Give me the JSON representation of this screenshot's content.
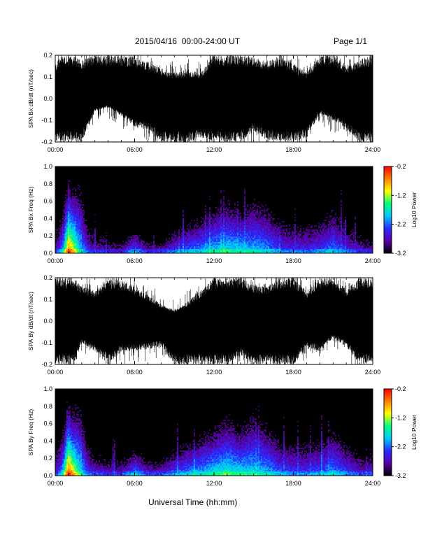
{
  "header": {
    "title": "2015/04/16  00:00-24:00 UT",
    "page": "Page 1/1"
  },
  "x_axis_title": "Universal Time (hh:mm)",
  "colors": {
    "background": "#ffffff",
    "waveform": "#000000",
    "spectrogram_background": "#000000",
    "colorbar": [
      "#000000",
      "#5a00a8",
      "#2a2aff",
      "#00c8ff",
      "#00ff80",
      "#ffff00",
      "#ff8000",
      "#ff0000"
    ]
  },
  "chart_data": [
    {
      "type": "line",
      "panel": "SPA Bx dB/dt",
      "ylabel": "SPA Bx dB/dt (nT/sec)",
      "ylim": [
        -0.2,
        0.2
      ],
      "yticks": [
        "-0.2",
        "-0.1",
        "0.0",
        "0.1",
        "0.2"
      ],
      "xlim": [
        "00:00",
        "24:00"
      ],
      "xticks": [
        "00:00",
        "06:00",
        "12:00",
        "18:00",
        "24:00"
      ],
      "amplitude_envelope": {
        "hours": [
          0,
          0.5,
          1,
          1.5,
          2,
          3,
          4,
          5,
          6,
          7,
          8,
          9,
          10,
          11,
          12,
          13,
          14,
          15,
          16,
          17,
          18,
          19,
          20,
          21,
          22,
          23,
          24
        ],
        "upper": [
          0.16,
          0.2,
          0.2,
          0.2,
          0.18,
          0.2,
          0.2,
          0.2,
          0.19,
          0.17,
          0.14,
          0.12,
          0.13,
          0.12,
          0.2,
          0.2,
          0.2,
          0.19,
          0.17,
          0.2,
          0.16,
          0.12,
          0.2,
          0.2,
          0.15,
          0.18,
          0.2
        ],
        "lower": [
          -0.2,
          -0.2,
          -0.19,
          -0.2,
          -0.2,
          -0.06,
          -0.04,
          -0.08,
          -0.13,
          -0.14,
          -0.2,
          -0.2,
          -0.2,
          -0.18,
          -0.2,
          -0.2,
          -0.2,
          -0.15,
          -0.19,
          -0.2,
          -0.2,
          -0.18,
          -0.07,
          -0.1,
          -0.14,
          -0.2,
          -0.2
        ]
      }
    },
    {
      "type": "heatmap",
      "panel": "SPA Bx Freq",
      "ylabel": "SPA Bx Freq (Hz)",
      "ylim": [
        0.0,
        1.0
      ],
      "yticks": [
        "0.0",
        "0.2",
        "0.4",
        "0.6",
        "0.8",
        "1.0"
      ],
      "xlim": [
        "00:00",
        "24:00"
      ],
      "xticks": [
        "00:00",
        "06:00",
        "12:00",
        "18:00",
        "24:00"
      ],
      "colorbar_label": "Log10 Power",
      "colorbar_range": [
        -3.2,
        -0.2
      ],
      "colorbar_ticks": [
        "-0.2",
        "-1.2",
        "-2.2",
        "-3.2"
      ],
      "activity_profile": {
        "hours": [
          0,
          0.5,
          1,
          1.3,
          1.8,
          2.5,
          3,
          4,
          5,
          6,
          7,
          8,
          9,
          10,
          11,
          12,
          13,
          14,
          15,
          16,
          17,
          18,
          19,
          20,
          21,
          22,
          23,
          24
        ],
        "max_freq_hz": [
          0.35,
          0.55,
          1.0,
          0.9,
          1.0,
          0.45,
          0.3,
          0.25,
          0.2,
          0.35,
          0.2,
          0.2,
          0.35,
          0.45,
          0.55,
          0.65,
          0.75,
          0.65,
          0.8,
          0.7,
          0.5,
          0.45,
          0.45,
          0.5,
          0.65,
          0.45,
          0.3,
          0.25
        ],
        "log_power_peak": [
          -2.6,
          -2.0,
          -0.4,
          -0.8,
          -1.6,
          -2.4,
          -2.5,
          -2.6,
          -2.6,
          -2.0,
          -2.5,
          -2.5,
          -2.2,
          -2.0,
          -1.9,
          -1.7,
          -1.6,
          -1.7,
          -1.8,
          -1.9,
          -2.2,
          -2.3,
          -2.3,
          -2.2,
          -2.0,
          -2.3,
          -2.5,
          -2.6
        ]
      }
    },
    {
      "type": "line",
      "panel": "SPA By dB/dt",
      "ylabel": "SPA By dB/dt (nT/sec)",
      "ylim": [
        -0.2,
        0.2
      ],
      "yticks": [
        "-0.2",
        "-0.1",
        "0.0",
        "0.1",
        "0.2"
      ],
      "xlim": [
        "00:00",
        "24:00"
      ],
      "xticks": [
        "00:00",
        "06:00",
        "12:00",
        "18:00",
        "24:00"
      ],
      "amplitude_envelope": {
        "hours": [
          0,
          0.5,
          1,
          1.5,
          2,
          3,
          4,
          5,
          6,
          7,
          8,
          9,
          10,
          11,
          12,
          13,
          14,
          15,
          16,
          17,
          18,
          19,
          20,
          21,
          22,
          23,
          24
        ],
        "upper": [
          0.2,
          0.2,
          0.2,
          0.2,
          0.16,
          0.14,
          0.2,
          0.19,
          0.16,
          0.12,
          0.08,
          0.05,
          0.09,
          0.14,
          0.2,
          0.2,
          0.2,
          0.17,
          0.16,
          0.2,
          0.2,
          0.14,
          0.2,
          0.2,
          0.15,
          0.2,
          0.2
        ],
        "lower": [
          -0.2,
          -0.2,
          -0.2,
          -0.2,
          -0.1,
          -0.14,
          -0.2,
          -0.14,
          -0.14,
          -0.13,
          -0.12,
          -0.2,
          -0.2,
          -0.2,
          -0.2,
          -0.2,
          -0.16,
          -0.2,
          -0.2,
          -0.2,
          -0.2,
          -0.13,
          -0.14,
          -0.08,
          -0.12,
          -0.2,
          -0.2
        ]
      }
    },
    {
      "type": "heatmap",
      "panel": "SPA By Freq",
      "ylabel": "SPA By Freq (Hz)",
      "ylim": [
        0.0,
        1.0
      ],
      "yticks": [
        "0.0",
        "0.2",
        "0.4",
        "0.6",
        "0.8",
        "1.0"
      ],
      "xlim": [
        "00:00",
        "24:00"
      ],
      "xticks": [
        "00:00",
        "06:00",
        "12:00",
        "18:00",
        "24:00"
      ],
      "colorbar_label": "Log10 Power",
      "colorbar_range": [
        -3.2,
        -0.2
      ],
      "colorbar_ticks": [
        "-0.2",
        "-1.2",
        "-2.2",
        "-3.2"
      ],
      "activity_profile": {
        "hours": [
          0,
          0.5,
          1,
          1.3,
          1.8,
          2.5,
          3,
          4,
          5,
          6,
          7,
          8,
          9,
          10,
          11,
          12,
          13,
          14,
          15,
          16,
          17,
          18,
          19,
          20,
          21,
          22,
          23,
          24
        ],
        "max_freq_hz": [
          0.4,
          0.6,
          1.0,
          0.9,
          1.0,
          0.5,
          0.35,
          0.3,
          0.25,
          0.4,
          0.25,
          0.25,
          0.4,
          0.5,
          0.6,
          0.7,
          0.85,
          0.7,
          0.9,
          0.75,
          0.55,
          0.5,
          0.5,
          0.55,
          0.7,
          0.5,
          0.35,
          0.3
        ],
        "log_power_peak": [
          -2.5,
          -1.9,
          -0.3,
          -0.7,
          -1.5,
          -2.3,
          -2.4,
          -2.5,
          -2.5,
          -1.9,
          -2.4,
          -2.4,
          -2.1,
          -1.9,
          -1.8,
          -1.6,
          -1.5,
          -1.6,
          -1.7,
          -1.8,
          -2.1,
          -2.2,
          -2.2,
          -2.1,
          -1.9,
          -2.2,
          -2.4,
          -2.5
        ]
      }
    }
  ]
}
